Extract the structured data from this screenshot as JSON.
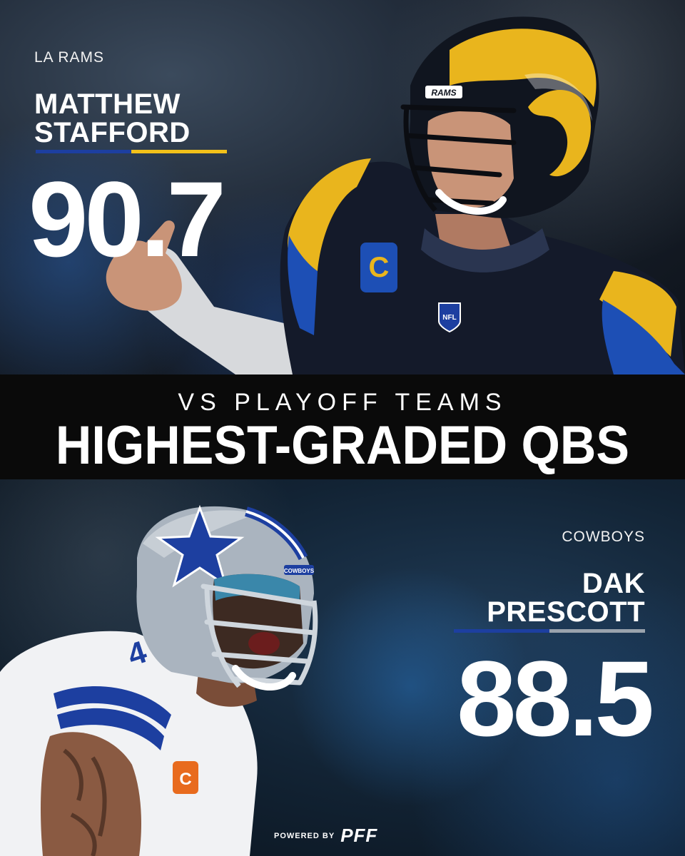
{
  "top_player": {
    "team": "LA RAMS",
    "name_line1": "MATTHEW",
    "name_line2": "STAFFORD",
    "grade": "90.7",
    "bar_colors": [
      "#1d3fa0",
      "#f2c11a"
    ]
  },
  "banner": {
    "subtitle": "VS PLAYOFF TEAMS",
    "title": "HIGHEST-GRADED QBS"
  },
  "bottom_player": {
    "team": "COWBOYS",
    "name_line1": "DAK",
    "name_line2": "PRESCOTT",
    "grade": "88.5",
    "bar_colors": [
      "#1d3fa0",
      "#9aa3ad"
    ]
  },
  "footer": {
    "powered_by": "POWERED BY",
    "brand": "PFF"
  },
  "photo_top": {
    "helmet_logo": "RAMS",
    "patch": "C",
    "shield": "NFL"
  },
  "photo_bottom": {
    "helmet_logo": "COWBOYS",
    "jersey_number": "4"
  }
}
